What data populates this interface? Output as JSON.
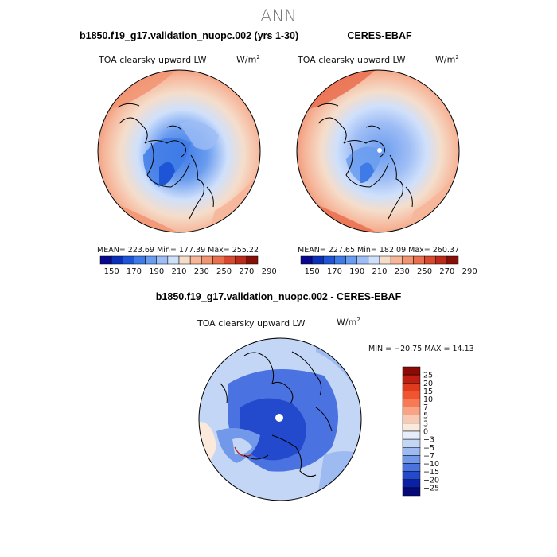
{
  "figure_title": "ANN",
  "panels": [
    {
      "title": "b1850.f19_g17.validation_nuopc.002 (yrs 1-30)",
      "variable": "TOA clearsky upward LW",
      "units_base": "W/m",
      "units_exp": "2",
      "stats": "MEAN= 223.69   Min= 177.39   Max= 255.22"
    },
    {
      "title": "CERES-EBAF",
      "variable": "TOA clearsky upward LW",
      "units_base": "W/m",
      "units_exp": "2",
      "stats": "MEAN= 227.65   Min= 182.09   Max= 260.37"
    },
    {
      "title": "b1850.f19_g17.validation_nuopc.002 - CERES-EBAF",
      "variable": "TOA clearsky upward LW",
      "units_base": "W/m",
      "units_exp": "2",
      "stats": "MIN = −20.75  MAX =  14.13"
    }
  ],
  "chart_data": [
    {
      "type": "heatmap",
      "projection": "north-polar-stereographic",
      "title": "b1850.f19_g17.validation_nuopc.002 (yrs 1-30)",
      "variable": "TOA clearsky upward LW",
      "units": "W/m^2",
      "mean": 223.69,
      "min": 177.39,
      "max": 255.22,
      "colorbar_levels": [
        150,
        170,
        190,
        210,
        230,
        250,
        270,
        290
      ],
      "colorbar_colors": [
        "#08088f",
        "#0b2fb8",
        "#1e55d6",
        "#3f7be6",
        "#6a9cef",
        "#9ebdf5",
        "#cfe0fb",
        "#f5ddca",
        "#f6b69a",
        "#f19472",
        "#e96f4f",
        "#d84930",
        "#bb2b1c",
        "#861008"
      ]
    },
    {
      "type": "heatmap",
      "projection": "north-polar-stereographic",
      "title": "CERES-EBAF",
      "variable": "TOA clearsky upward LW",
      "units": "W/m^2",
      "mean": 227.65,
      "min": 182.09,
      "max": 260.37,
      "colorbar_levels": [
        150,
        170,
        190,
        210,
        230,
        250,
        270,
        290
      ],
      "colorbar_colors": [
        "#08088f",
        "#0b2fb8",
        "#1e55d6",
        "#3f7be6",
        "#6a9cef",
        "#9ebdf5",
        "#cfe0fb",
        "#f5ddca",
        "#f6b69a",
        "#f19472",
        "#e96f4f",
        "#d84930",
        "#bb2b1c",
        "#861008"
      ]
    },
    {
      "type": "heatmap",
      "projection": "north-polar-stereographic",
      "title": "b1850.f19_g17.validation_nuopc.002 - CERES-EBAF",
      "variable": "TOA clearsky upward LW",
      "units": "W/m^2",
      "min": -20.75,
      "max": 14.13,
      "colorbar_levels": [
        25,
        20,
        15,
        10,
        7,
        5,
        3,
        0,
        -3,
        -5,
        -7,
        -10,
        -15,
        -20,
        -25
      ],
      "colorbar_colors": [
        "#8b0a05",
        "#c01e10",
        "#e03a1f",
        "#f05530",
        "#f57a55",
        "#f7a486",
        "#f8c9b3",
        "#fbe9dc",
        "#e6eefb",
        "#c3d6f6",
        "#9dbaf1",
        "#7298ea",
        "#4a72e0",
        "#2349cc",
        "#0c20a6",
        "#050a78"
      ]
    }
  ]
}
